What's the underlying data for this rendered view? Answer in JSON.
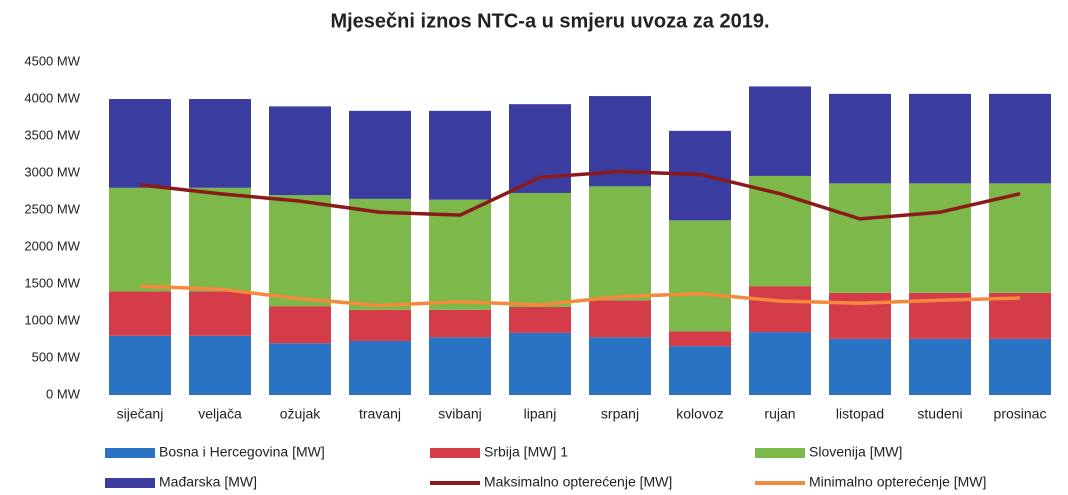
{
  "chart_data": {
    "type": "bar",
    "stacked": true,
    "title": "Mjesečni iznos NTC-a u smjeru uvoza za 2019.",
    "categories": [
      "siječanj",
      "veljača",
      "ožujak",
      "travanj",
      "svibanj",
      "lipanj",
      "srpanj",
      "kolovoz",
      "rujan",
      "listopad",
      "studeni",
      "prosinac"
    ],
    "series": [
      {
        "name": "Bosna i Hercegovina [MW]",
        "type": "bar",
        "color": "#2a73c4",
        "values": [
          800,
          800,
          700,
          730,
          780,
          840,
          780,
          660,
          850,
          760,
          760,
          760
        ]
      },
      {
        "name": "Srbija [MW] 1",
        "type": "bar",
        "color": "#d43c4a",
        "values": [
          600,
          600,
          500,
          420,
          370,
          350,
          500,
          200,
          620,
          620,
          620,
          620
        ]
      },
      {
        "name": "Slovenija [MW]",
        "type": "bar",
        "color": "#7cb84a",
        "values": [
          1400,
          1400,
          1500,
          1500,
          1490,
          1540,
          1540,
          1500,
          1490,
          1480,
          1480,
          1480
        ]
      },
      {
        "name": "Mađarska [MW]",
        "type": "bar",
        "color": "#3b3da1",
        "values": [
          1200,
          1200,
          1200,
          1190,
          1200,
          1200,
          1220,
          1210,
          1210,
          1210,
          1210,
          1210
        ]
      },
      {
        "name": "Maksimalno opterećenje [MW]",
        "type": "line",
        "color": "#8b1a1a",
        "values": [
          2840,
          2720,
          2620,
          2470,
          2430,
          2940,
          3020,
          2980,
          2720,
          2380,
          2470,
          2720
        ]
      },
      {
        "name": "Minimalno opterećenje [MW]",
        "type": "line",
        "color": "#f58a3c",
        "values": [
          1470,
          1430,
          1300,
          1210,
          1260,
          1220,
          1330,
          1370,
          1270,
          1240,
          1280,
          1310
        ]
      }
    ],
    "ylim": [
      0,
      4500
    ],
    "yticks": [
      {
        "value": 0,
        "label": "0 MW"
      },
      {
        "value": 500,
        "label": "500 MW"
      },
      {
        "value": 1000,
        "label": "1000 MW"
      },
      {
        "value": 1500,
        "label": "1500 MW"
      },
      {
        "value": 2000,
        "label": "2000 MW"
      },
      {
        "value": 2500,
        "label": "2500 MW"
      },
      {
        "value": 3000,
        "label": "3000 MW"
      },
      {
        "value": 3500,
        "label": "3500 MW"
      },
      {
        "value": 4000,
        "label": "4000 MW"
      },
      {
        "value": 4500,
        "label": "4500 MW"
      }
    ],
    "grid": false
  }
}
